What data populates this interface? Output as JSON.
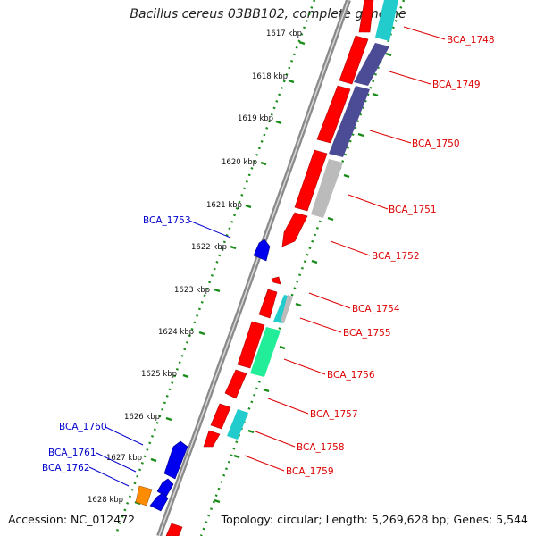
{
  "title": "Bacillus cereus 03BB102, complete genome",
  "footer": {
    "accession": "Accession: NC_012472",
    "summary": "Topology: circular; Length: 5,269,628 bp; Genes: 5,544"
  },
  "scale_ticks": [
    "1617 kbp",
    "1618 kbp",
    "1619 kbp",
    "1620 kbp",
    "1621 kbp",
    "1622 kbp",
    "1623 kbp",
    "1624 kbp",
    "1625 kbp",
    "1626 kbp",
    "1627 kbp",
    "1628 kbp"
  ],
  "gene_labels_right": [
    "BCA_1748",
    "BCA_1749",
    "BCA_1750",
    "BCA_1751",
    "BCA_1752",
    "BCA_1754",
    "BCA_1755",
    "BCA_1756",
    "BCA_1757",
    "BCA_1758",
    "BCA_1759"
  ],
  "gene_labels_left": [
    "BCA_1753",
    "BCA_1760",
    "BCA_1761",
    "BCA_1762"
  ],
  "colors": {
    "forward_gene": "#ff0000",
    "reverse_gene": "#0000ee",
    "cyan": "#22cccc",
    "slate": "#4b4b96",
    "grey": "#bbbbbb",
    "green": "#22ee99",
    "orange": "#ff8c00",
    "backbone": "#888888",
    "ticks": "#1a8c1a",
    "label_right": "#dd0000",
    "label_left": "#0000cc"
  }
}
